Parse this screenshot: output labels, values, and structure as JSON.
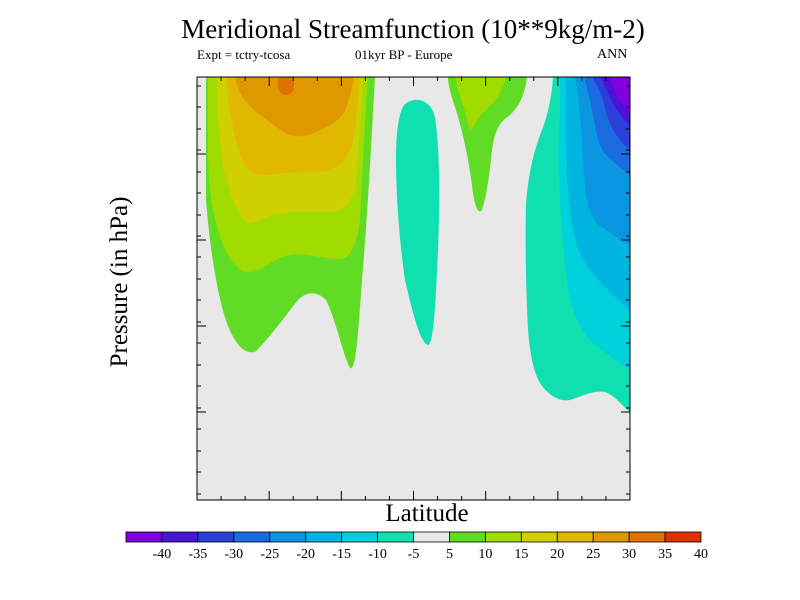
{
  "chart_data": {
    "type": "contour",
    "title": "Meridional Streamfunction (10**9kg/m-2)",
    "subtitle_left": "Expt = tctry-tcosa",
    "subtitle_center": "01kyr BP - Europe",
    "subtitle_right": "ANN",
    "xlabel": "Latitude",
    "ylabel": "Pressure (in hPa)",
    "y_direction": "pressure-decreasing-upward",
    "levels": [
      -45,
      -40,
      -35,
      -30,
      -25,
      -20,
      -15,
      -10,
      -5,
      5,
      10,
      15,
      20,
      25,
      30,
      35,
      40,
      45
    ],
    "colorbar_labels": [
      "-40",
      "-35",
      "-30",
      "-25",
      "-20",
      "-15",
      "-10",
      "-5",
      "5",
      "10",
      "15",
      "20",
      "25",
      "30",
      "35",
      "40"
    ],
    "colorbar_colors": [
      "#8000e0",
      "#4a14d8",
      "#2a40d8",
      "#1a6ae0",
      "#0a96e0",
      "#00b4e0",
      "#00d2dc",
      "#10e0b0",
      "#e8e8e8",
      "#60dc24",
      "#a0dc00",
      "#d0d000",
      "#e0b800",
      "#e09800",
      "#e07000",
      "#e03000"
    ],
    "features": [
      {
        "name": "positive-cell-west",
        "peak_value": 30,
        "sign": "positive"
      },
      {
        "name": "negative-band-central",
        "peak_value": -10,
        "sign": "negative"
      },
      {
        "name": "positive-cell-central",
        "peak_value": 15,
        "sign": "positive"
      },
      {
        "name": "negative-cell-east",
        "peak_value": -40,
        "sign": "negative"
      }
    ]
  }
}
